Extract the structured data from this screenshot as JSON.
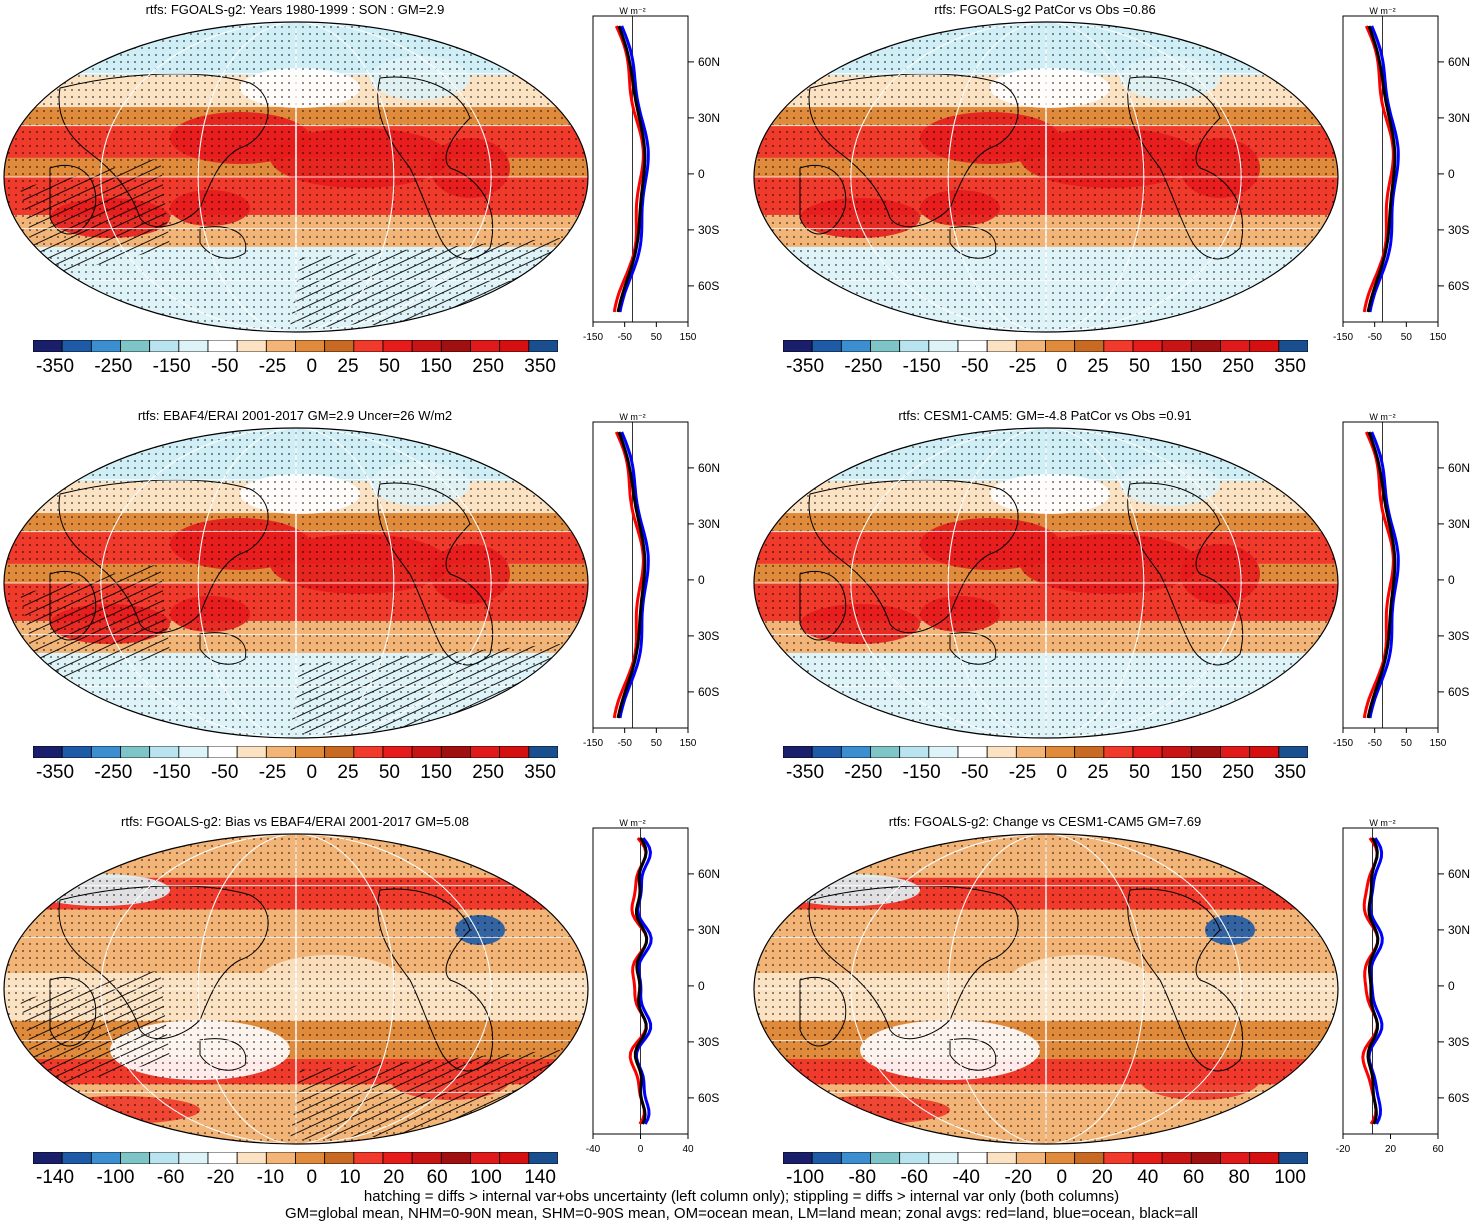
{
  "panels": [
    {
      "title": "rtfs: FGOALS-g2: Years 1980-1999 : SON : GM=2.9",
      "hatched": true,
      "palette": "mean"
    },
    {
      "title": "rtfs: FGOALS-g2 PatCor vs Obs =0.86",
      "hatched": false,
      "palette": "mean"
    },
    {
      "title": "rtfs: EBAF4/ERAI 2001-2017 GM=2.9 Uncer=26 W/m2",
      "hatched": true,
      "palette": "mean"
    },
    {
      "title": "rtfs: CESM1-CAM5: GM=-4.8 PatCor vs Obs =0.91",
      "hatched": false,
      "palette": "mean"
    },
    {
      "title": "rtfs: FGOALS-g2: Bias vs EBAF4/ERAI 2001-2017  GM=5.08",
      "hatched": true,
      "palette": "diff"
    },
    {
      "title": "rtfs: FGOALS-g2: Change vs CESM1-CAM5 GM=7.69",
      "hatched": false,
      "palette": "diff"
    }
  ],
  "colorbars": {
    "mean": [
      "-350",
      "-250",
      "-150",
      "-50",
      "-25",
      "0",
      "25",
      "50",
      "150",
      "250",
      "350"
    ],
    "diff_left": [
      "-140",
      "-100",
      "-60",
      "-20",
      "-10",
      "0",
      "10",
      "20",
      "60",
      "100",
      "140"
    ],
    "diff_right": [
      "-100",
      "-80",
      "-60",
      "-40",
      "-20",
      "0",
      "20",
      "40",
      "60",
      "80",
      "100"
    ]
  },
  "colors": [
    "#1a1f6b",
    "#1f5aa6",
    "#3b8fd0",
    "#7fc4c6",
    "#b9e3ee",
    "#def3f7",
    "#ffffff",
    "#fbe2c2",
    "#f2b577",
    "#e08a3c",
    "#c86a23",
    "#f03a2c",
    "#e61c1c",
    "#c81414",
    "#a01010",
    "#e01a1a",
    "#d41010",
    "#1a4f8f"
  ],
  "zonal_axis": {
    "unit": "W m⁻²",
    "lat_ticks": [
      "60N",
      "30N",
      "0",
      "30S",
      "60S"
    ],
    "x_ticks_mean": [
      "-150",
      "-50",
      "50",
      "150"
    ],
    "x_ticks_bias": [
      "-40",
      "0",
      "40"
    ],
    "x_ticks_change": [
      "-20",
      "20",
      "60"
    ]
  },
  "caption": {
    "line1": "hatching = diffs > internal var+obs uncertainty (left column only); stippling = diffs > internal var only (both columns)",
    "line2": "GM=global mean, NHM=0-90N mean, SHM=0-90S mean, OM=ocean mean, LM=land mean; zonal avgs: red=land, blue=ocean, black=all"
  }
}
